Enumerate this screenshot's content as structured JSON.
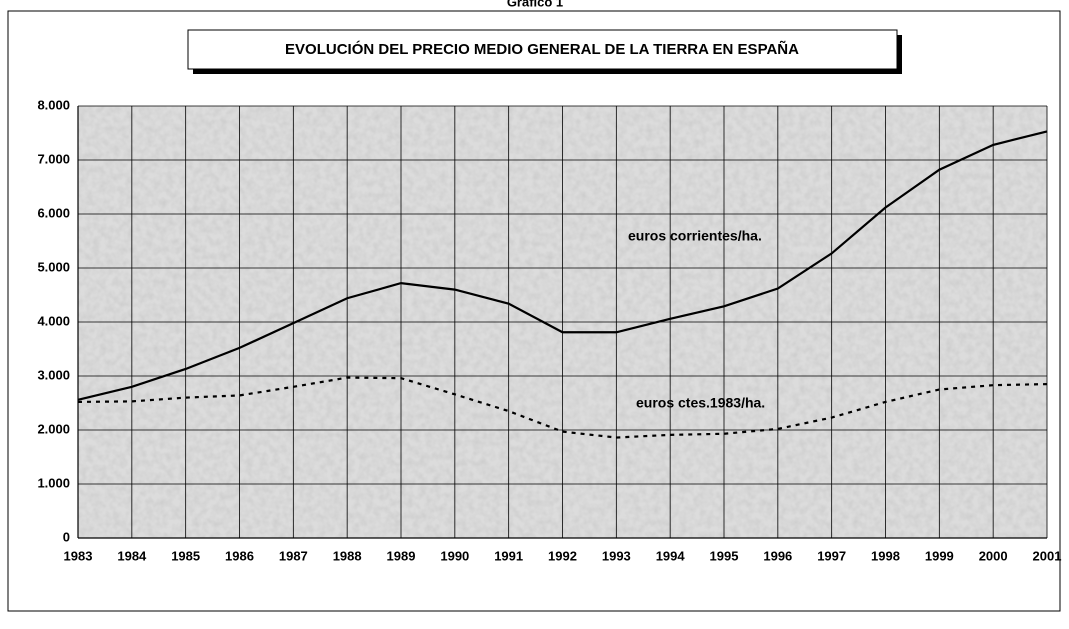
{
  "chart_data": {
    "type": "line",
    "caption": "Gráfico 1",
    "title": "EVOLUCIÓN DEL PRECIO MEDIO GENERAL DE LA TIERRA EN ESPAÑA",
    "x": [
      1983,
      1984,
      1985,
      1986,
      1987,
      1988,
      1989,
      1990,
      1991,
      1992,
      1993,
      1994,
      1995,
      1996,
      1997,
      1998,
      1999,
      2000,
      2001
    ],
    "xlim": [
      1983,
      2001
    ],
    "xticks": [
      1983,
      1984,
      1985,
      1986,
      1987,
      1988,
      1989,
      1990,
      1991,
      1992,
      1993,
      1994,
      1995,
      1996,
      1997,
      1998,
      1999,
      2000,
      2001
    ],
    "ylim": [
      0,
      8000
    ],
    "yticks": [
      0,
      {
        "value": 1000,
        "label": "1.000"
      },
      {
        "value": 2000,
        "label": "2.000"
      },
      {
        "value": 3000,
        "label": "3.000"
      },
      {
        "value": 4000,
        "label": "4.000"
      },
      {
        "value": 5000,
        "label": "5.000"
      },
      {
        "value": 6000,
        "label": "6.000"
      },
      {
        "value": 7000,
        "label": "7.000"
      },
      {
        "value": 8000,
        "label": "8.000"
      }
    ],
    "grid": true,
    "series": [
      {
        "name": "euros corrientes/ha.",
        "color": "#000000",
        "line_style": "solid",
        "values": [
          2560,
          2800,
          3130,
          3520,
          3980,
          4440,
          4720,
          4600,
          4340,
          3810,
          3810,
          4060,
          4290,
          4620,
          5270,
          6120,
          6820,
          7280,
          7530
        ]
      },
      {
        "name": "euros ctes.1983/ha.",
        "color": "#000000",
        "line_style": "dotted",
        "values": [
          2520,
          2530,
          2600,
          2640,
          2800,
          2970,
          2960,
          2660,
          2350,
          1970,
          1860,
          1910,
          1930,
          2020,
          2230,
          2520,
          2750,
          2830,
          2850
        ]
      }
    ]
  }
}
